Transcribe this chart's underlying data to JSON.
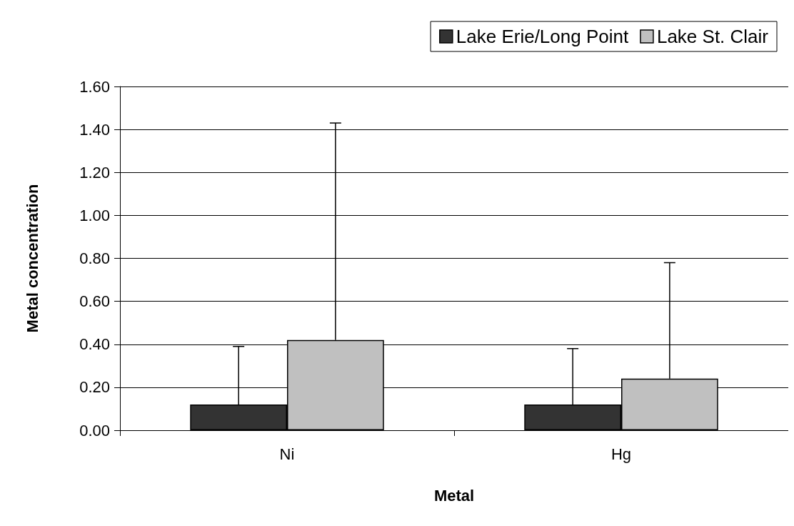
{
  "chart_data": {
    "type": "bar",
    "xlabel": "Metal",
    "ylabel": "Metal concentration",
    "categories": [
      "Ni",
      "Hg"
    ],
    "series": [
      {
        "name": "Lake Erie/Long Point",
        "color": "#333333",
        "values": [
          0.12,
          0.12
        ],
        "errors": [
          [
            0.12,
            0.39
          ],
          [
            0.12,
            0.38
          ]
        ]
      },
      {
        "name": "Lake St. Clair",
        "color": "#c0c0c0",
        "values": [
          0.42,
          0.24
        ],
        "errors": [
          [
            0.42,
            1.43
          ],
          [
            0.24,
            0.78
          ]
        ]
      }
    ],
    "ylim": [
      0,
      1.6
    ],
    "yticks": [
      {
        "value": 0,
        "label": "0.00"
      },
      {
        "value": 0.2,
        "label": "0.20"
      },
      {
        "value": 0.4,
        "label": "0.40"
      },
      {
        "value": 0.6,
        "label": "0.60"
      },
      {
        "value": 0.8,
        "label": "0.80"
      },
      {
        "value": 1,
        "label": "1.00"
      },
      {
        "value": 1.2,
        "label": "1.20"
      },
      {
        "value": 1.4,
        "label": "1.40"
      },
      {
        "value": 1.6,
        "label": "1.60"
      }
    ],
    "grid": "y",
    "legend": "top right"
  }
}
